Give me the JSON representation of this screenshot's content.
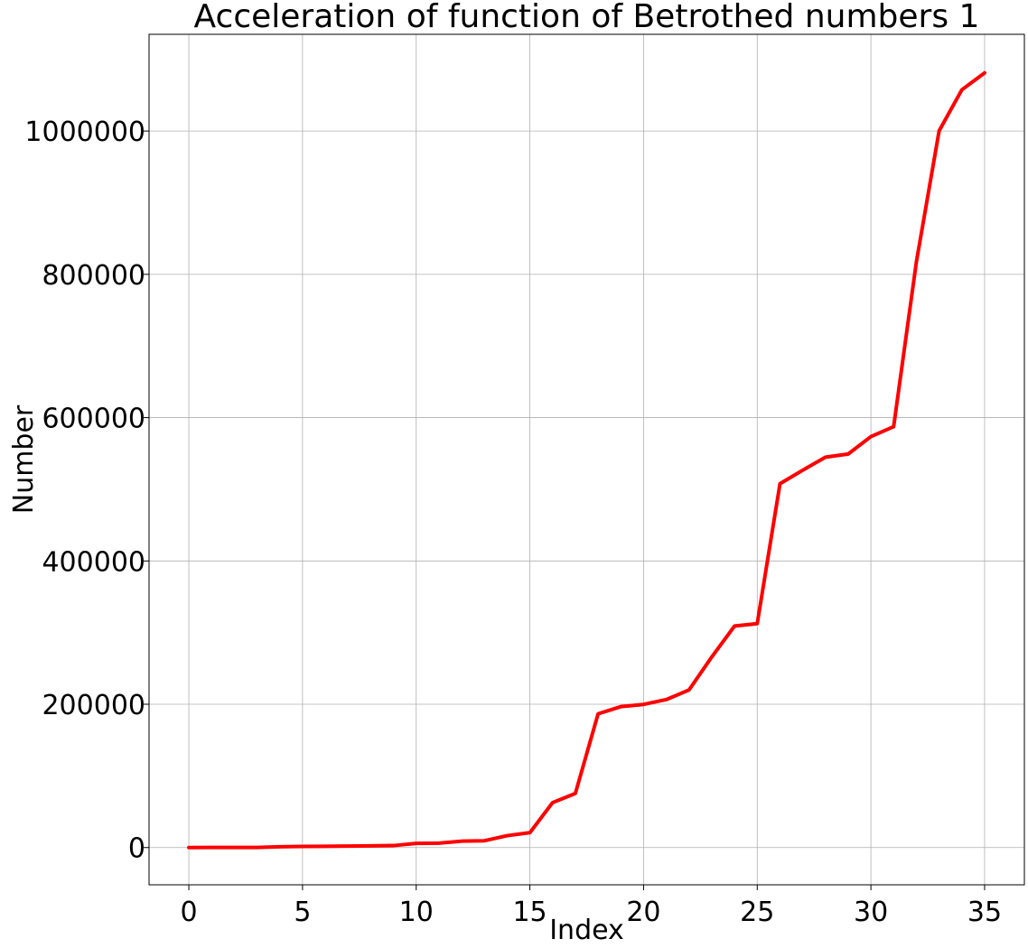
{
  "chart_data": {
    "type": "line",
    "title": "Acceleration of function of Betrothed numbers 1",
    "xlabel": "Index",
    "ylabel": "Number",
    "xlim": [
      -1.75,
      36.75
    ],
    "ylim": [
      -52000,
      1135000
    ],
    "grid": true,
    "xticks": [
      0,
      5,
      10,
      15,
      20,
      25,
      30,
      35
    ],
    "xtick_labels": [
      "0",
      "5",
      "10",
      "15",
      "20",
      "25",
      "30",
      "35"
    ],
    "yticks": [
      0,
      200000,
      400000,
      600000,
      800000,
      1000000
    ],
    "ytick_labels": [
      "0",
      "200000",
      "400000",
      "600000",
      "800000",
      "1000000"
    ],
    "series": [
      {
        "color": "#ff0000",
        "x": [
          0,
          1,
          2,
          3,
          4,
          5,
          6,
          7,
          8,
          9,
          10,
          11,
          12,
          13,
          14,
          15,
          16,
          17,
          18,
          19,
          20,
          21,
          22,
          23,
          24,
          25,
          26,
          27,
          28,
          29,
          30,
          31,
          32,
          33,
          34,
          35
        ],
        "y": [
          48,
          75,
          140,
          195,
          1050,
          1575,
          1648,
          2024,
          2295,
          2735,
          5775,
          6128,
          8892,
          9504,
          16587,
          20735,
          62744,
          75495,
          186615,
          196664,
          199760,
          206504,
          219975,
          266000,
          309135,
          312542,
          507759,
          526575,
          544784,
          549219,
          573560,
          587460,
          817479,
          1000335,
          1057595,
          1081184
        ]
      }
    ]
  }
}
